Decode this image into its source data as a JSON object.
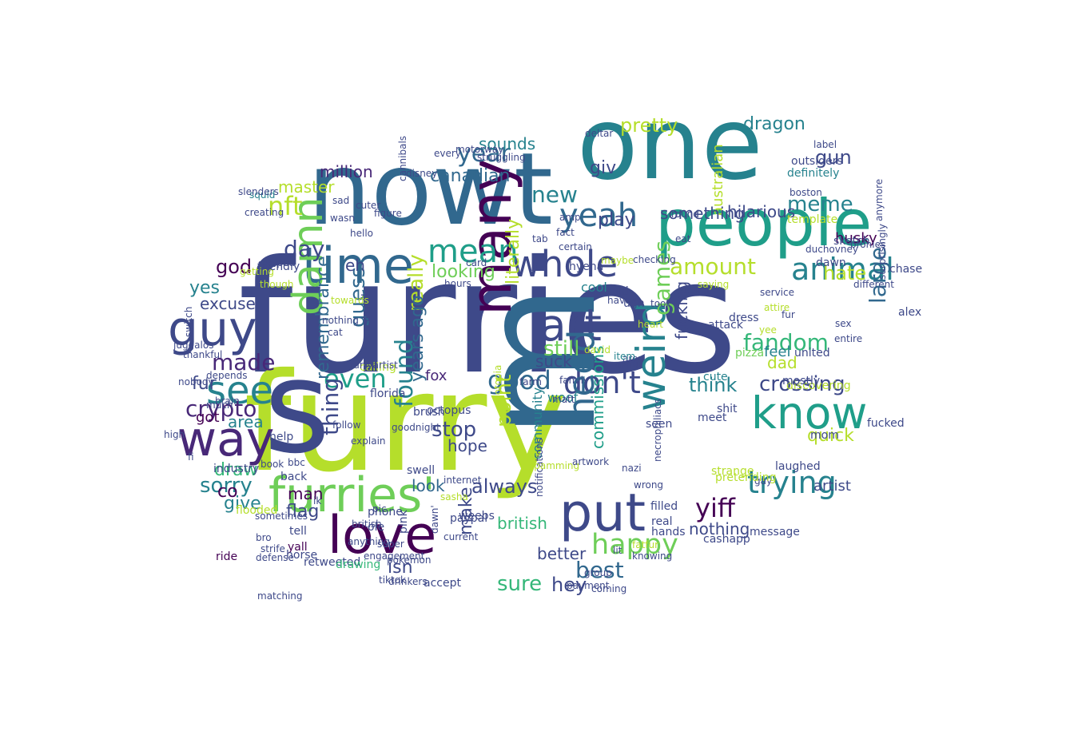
{
  "colors": [
    "#440154",
    "#482878",
    "#3e4989",
    "#31688e",
    "#26828e",
    "#1f9e89",
    "#35b779",
    "#6ece58",
    "#b5de2b",
    "#fde725"
  ],
  "words": [
    {
      "text": "furries",
      "color": "#3e4989"
    },
    {
      "text": "furry",
      "color": "#b5de2b"
    },
    {
      "text": "nowt",
      "color": "#31688e"
    },
    {
      "text": "one",
      "color": "#26828e"
    },
    {
      "text": "m",
      "color": "#31688e"
    },
    {
      "text": "s",
      "color": "#3e4989"
    },
    {
      "text": "people",
      "color": "#1f9e89"
    },
    {
      "text": "way",
      "color": "#482878"
    },
    {
      "text": "time",
      "color": "#31688e"
    },
    {
      "text": "whole",
      "color": "#3e4989"
    },
    {
      "text": "love",
      "color": "#440154"
    },
    {
      "text": "put",
      "color": "#3e4989"
    },
    {
      "text": "furries'",
      "color": "#6ece58"
    },
    {
      "text": "many",
      "color": "#440154"
    },
    {
      "text": "guy",
      "color": "#3e4989"
    },
    {
      "text": "see",
      "color": "#26828e"
    },
    {
      "text": "art",
      "color": "#3e4989"
    },
    {
      "text": "mean",
      "color": "#1f9e89"
    },
    {
      "text": "yeah",
      "color": "#31688e"
    },
    {
      "text": "know",
      "color": "#1f9e89"
    },
    {
      "text": "weird",
      "color": "#26828e"
    },
    {
      "text": "don't",
      "color": "#3e4989"
    },
    {
      "text": "damn",
      "color": "#6ece58"
    },
    {
      "text": "happy",
      "color": "#6ece58"
    },
    {
      "text": "need",
      "color": "#31688e"
    },
    {
      "text": "animal",
      "color": "#26828e"
    },
    {
      "text": "amount",
      "color": "#b5de2b"
    },
    {
      "text": "fandom",
      "color": "#35b779"
    },
    {
      "text": "trying",
      "color": "#26828e"
    },
    {
      "text": "yiff",
      "color": "#440154"
    },
    {
      "text": "crypto",
      "color": "#482878"
    },
    {
      "text": "year",
      "color": "#31688e"
    },
    {
      "text": "good",
      "color": "#31688e"
    },
    {
      "text": "meme",
      "color": "#26828e"
    },
    {
      "text": "gun",
      "color": "#3e4989"
    },
    {
      "text": "large",
      "color": "#31688e"
    },
    {
      "text": "still",
      "color": "#6ece58"
    },
    {
      "text": "think",
      "color": "#26828e"
    },
    {
      "text": "crossing",
      "color": "#3e4989"
    },
    {
      "text": "nft",
      "color": "#b5de2b"
    },
    {
      "text": "even",
      "color": "#1f9e89"
    },
    {
      "text": "day",
      "color": "#3e4989"
    },
    {
      "text": "made",
      "color": "#482878"
    },
    {
      "text": "stop",
      "color": "#3e4989"
    },
    {
      "text": "really",
      "color": "#b5de2b"
    },
    {
      "text": "always",
      "color": "#3e4989"
    },
    {
      "text": "sure",
      "color": "#35b779"
    },
    {
      "text": "best",
      "color": "#31688e"
    },
    {
      "text": "hey",
      "color": "#3e4989"
    },
    {
      "text": "games",
      "color": "#6ece58"
    },
    {
      "text": "dragon",
      "color": "#26828e"
    },
    {
      "text": "hilarious",
      "color": "#3e4989"
    },
    {
      "text": "hate",
      "color": "#b5de2b"
    },
    {
      "text": "sorry",
      "color": "#26828e"
    },
    {
      "text": "thing",
      "color": "#3e4989"
    },
    {
      "text": "excuse",
      "color": "#3e4989"
    },
    {
      "text": "god",
      "color": "#440154"
    },
    {
      "text": "fur",
      "color": "#3e4989"
    },
    {
      "text": "million",
      "color": "#482878"
    },
    {
      "text": "canadian",
      "color": "#31688e"
    },
    {
      "text": "looking",
      "color": "#6ece58"
    },
    {
      "text": "pretty",
      "color": "#b5de2b"
    },
    {
      "text": "husky",
      "color": "#440154"
    },
    {
      "text": "found",
      "color": "#26828e"
    },
    {
      "text": "years ago",
      "color": "#31688e"
    },
    {
      "text": "guess",
      "color": "#31688e"
    },
    {
      "text": "quick",
      "color": "#b5de2b"
    },
    {
      "text": "draw",
      "color": "#35b779"
    },
    {
      "text": "give",
      "color": "#26828e"
    },
    {
      "text": "flag",
      "color": "#3e4989"
    },
    {
      "text": "man",
      "color": "#440154"
    },
    {
      "text": "isn",
      "color": "#3e4989"
    },
    {
      "text": "look",
      "color": "#31688e"
    },
    {
      "text": "make",
      "color": "#3e4989"
    },
    {
      "text": "better",
      "color": "#3e4989"
    },
    {
      "text": "british",
      "color": "#35b779"
    },
    {
      "text": "nothing",
      "color": "#3e4989"
    },
    {
      "text": "dad",
      "color": "#b5de2b"
    },
    {
      "text": "remembrance",
      "color": "#31688e"
    },
    {
      "text": "community",
      "color": "#26828e"
    },
    {
      "text": "commissions",
      "color": "#1f9e89"
    },
    {
      "text": "fox",
      "color": "#482878"
    },
    {
      "text": "master",
      "color": "#b5de2b"
    },
    {
      "text": "australian",
      "color": "#b5de2b"
    },
    {
      "text": "something",
      "color": "#3e4989"
    },
    {
      "text": "sounds",
      "color": "#26828e"
    },
    {
      "text": "play",
      "color": "#3e4989"
    },
    {
      "text": "new",
      "color": "#26828e"
    },
    {
      "text": "yes",
      "color": "#26828e"
    },
    {
      "text": "got",
      "color": "#440154"
    },
    {
      "text": "area",
      "color": "#26828e"
    },
    {
      "text": "co",
      "color": "#440154"
    },
    {
      "text": "fucking",
      "color": "#3e4989"
    },
    {
      "text": "eh",
      "color": "#3e4989"
    },
    {
      "text": "giv",
      "color": "#3e4989"
    },
    {
      "text": "point",
      "color": "#b5de2b"
    },
    {
      "text": "hope",
      "color": "#3e4989"
    },
    {
      "text": "literally",
      "color": "#b5de2b"
    },
    {
      "text": "suck",
      "color": "#3e4989"
    },
    {
      "text": "feel",
      "color": "#26828e"
    },
    {
      "text": "woof",
      "color": "#26828e"
    },
    {
      "text": "definitely",
      "color": "#26828e"
    },
    {
      "text": "outsiders",
      "color": "#3e4989"
    },
    {
      "text": "template",
      "color": "#b5de2b"
    },
    {
      "text": "ride",
      "color": "#440154"
    },
    {
      "text": "dawn",
      "color": "#3e4989"
    },
    {
      "text": "squid",
      "color": "#26828e"
    },
    {
      "text": "hyena",
      "color": "#3e4989"
    },
    {
      "text": "cute",
      "color": "#26828e"
    },
    {
      "text": "pizza",
      "color": "#6ece58"
    },
    {
      "text": "alex",
      "color": "#3e4989"
    },
    {
      "text": "artist",
      "color": "#3e4989"
    },
    {
      "text": "mom",
      "color": "#3e4989"
    },
    {
      "text": "chase",
      "color": "#3e4989"
    },
    {
      "text": "haven",
      "color": "#3e4989"
    },
    {
      "text": "said",
      "color": "#3e4989"
    },
    {
      "text": "ugh",
      "color": "#3e4989"
    },
    {
      "text": "heart",
      "color": "#b5de2b"
    },
    {
      "text": "aren",
      "color": "#3e4989"
    },
    {
      "text": "awful",
      "color": "#3e4989"
    },
    {
      "text": "cool",
      "color": "#26828e"
    },
    {
      "text": "boston",
      "color": "#3e4989"
    },
    {
      "text": "sketch",
      "color": "#3e4989"
    },
    {
      "text": "bronies",
      "color": "#3e4989"
    },
    {
      "text": "different",
      "color": "#3e4989"
    },
    {
      "text": "entire",
      "color": "#3e4989"
    },
    {
      "text": "united",
      "color": "#3e4989"
    },
    {
      "text": "discovering",
      "color": "#b5de2b"
    },
    {
      "text": "fucked",
      "color": "#3e4989"
    },
    {
      "text": "laughed",
      "color": "#3e4989"
    },
    {
      "text": "strange",
      "color": "#b5de2b"
    },
    {
      "text": "yall",
      "color": "#440154"
    },
    {
      "text": "horse",
      "color": "#3e4989"
    },
    {
      "text": "retweeted",
      "color": "#3e4989"
    },
    {
      "text": "drawing",
      "color": "#35b779"
    },
    {
      "text": "industry",
      "color": "#3e4989"
    },
    {
      "text": "tell",
      "color": "#3e4989"
    },
    {
      "text": "flooded",
      "color": "#b5de2b"
    },
    {
      "text": "back",
      "color": "#3e4989"
    },
    {
      "text": "help",
      "color": "#3e4989"
    },
    {
      "text": "octopus",
      "color": "#3e4989"
    },
    {
      "text": "brush",
      "color": "#3e4989"
    },
    {
      "text": "florida",
      "color": "#3e4989"
    },
    {
      "text": "calling",
      "color": "#b5de2b"
    },
    {
      "text": "item",
      "color": "#26828e"
    },
    {
      "text": "amp",
      "color": "#3e4989"
    },
    {
      "text": "fact",
      "color": "#3e4989"
    },
    {
      "text": "dress",
      "color": "#3e4989"
    },
    {
      "text": "attack",
      "color": "#3e4989"
    },
    {
      "text": "paypal",
      "color": "#3e4989"
    },
    {
      "text": "current",
      "color": "#3e4989"
    },
    {
      "text": "accept",
      "color": "#3e4989"
    },
    {
      "text": "weebs",
      "color": "#3e4989"
    },
    {
      "text": "sasha",
      "color": "#b5de2b"
    },
    {
      "text": "internet",
      "color": "#3e4989"
    },
    {
      "text": "pink",
      "color": "#3e4989"
    },
    {
      "text": "ole",
      "color": "#3e4989"
    },
    {
      "text": "phone",
      "color": "#3e4989"
    },
    {
      "text": "swell",
      "color": "#3e4989"
    },
    {
      "text": "family",
      "color": "#3e4989"
    },
    {
      "text": "david",
      "color": "#b5de2b"
    },
    {
      "text": "shit",
      "color": "#3e4989"
    },
    {
      "text": "meet",
      "color": "#3e4989"
    },
    {
      "text": "filled",
      "color": "#3e4989"
    },
    {
      "text": "real",
      "color": "#3e4989"
    },
    {
      "text": "hands",
      "color": "#3e4989"
    },
    {
      "text": "message",
      "color": "#3e4989"
    },
    {
      "text": "cashapp",
      "color": "#3e4989"
    },
    {
      "text": "seen",
      "color": "#3e4989"
    },
    {
      "text": "gay",
      "color": "#3e4989"
    },
    {
      "text": "mostly",
      "color": "#3e4989"
    },
    {
      "text": "though",
      "color": "#b5de2b"
    },
    {
      "text": "helped",
      "color": "#3e4989"
    },
    {
      "text": "getting",
      "color": "#b5de2b"
    },
    {
      "text": "friendly",
      "color": "#3e4989"
    },
    {
      "text": "sad",
      "color": "#3e4989"
    },
    {
      "text": "wasn",
      "color": "#3e4989"
    },
    {
      "text": "hello",
      "color": "#3e4989"
    },
    {
      "text": "cuter",
      "color": "#3e4989"
    },
    {
      "text": "figure",
      "color": "#3e4989"
    },
    {
      "text": "tab",
      "color": "#3e4989"
    },
    {
      "text": "certain",
      "color": "#3e4989"
    },
    {
      "text": "card",
      "color": "#3e4989"
    },
    {
      "text": "hours",
      "color": "#3e4989"
    },
    {
      "text": "pic",
      "color": "#3e4989"
    },
    {
      "text": "checking",
      "color": "#3e4989"
    },
    {
      "text": "maybe",
      "color": "#b5de2b"
    },
    {
      "text": "took",
      "color": "#3e4989"
    },
    {
      "text": "round",
      "color": "#3e4989"
    },
    {
      "text": "eat",
      "color": "#3e4989"
    },
    {
      "text": "design",
      "color": "#3e4989"
    },
    {
      "text": "saying",
      "color": "#b5de2b"
    },
    {
      "text": "service",
      "color": "#3e4989"
    },
    {
      "text": "yee",
      "color": "#b5de2b"
    },
    {
      "text": "deltar",
      "color": "#3e4989"
    },
    {
      "text": "label",
      "color": "#3e4989"
    },
    {
      "text": "every",
      "color": "#3e4989"
    },
    {
      "text": "motorway",
      "color": "#3e4989"
    },
    {
      "text": "struggling",
      "color": "#3e4989"
    },
    {
      "text": "cannibals",
      "color": "#3e4989"
    },
    {
      "text": "creating",
      "color": "#3e4989"
    },
    {
      "text": "slenders",
      "color": "#3e4989"
    },
    {
      "text": "disney",
      "color": "#3e4989"
    },
    {
      "text": "switch",
      "color": "#3e4989"
    },
    {
      "text": "juggalos",
      "color": "#3e4989"
    },
    {
      "text": "constantly",
      "color": "#3e4989"
    },
    {
      "text": "furryartist",
      "color": "#3e4989"
    },
    {
      "text": "follow",
      "color": "#3e4989"
    },
    {
      "text": "goodnight",
      "color": "#3e4989"
    },
    {
      "text": "zootopia",
      "color": "#b5de2b"
    },
    {
      "text": "notifications",
      "color": "#3e4989"
    },
    {
      "text": "necrophiliacs",
      "color": "#3e4989"
    },
    {
      "text": "pretending",
      "color": "#b5de2b"
    },
    {
      "text": "sex",
      "color": "#3e4989"
    },
    {
      "text": "fur",
      "color": "#3e4989"
    },
    {
      "text": "attire",
      "color": "#b5de2b"
    },
    {
      "text": "surprisingly",
      "color": "#3e4989"
    },
    {
      "text": "anymore",
      "color": "#3e4989"
    },
    {
      "text": "duchovney",
      "color": "#3e4989"
    },
    {
      "text": "spamming",
      "color": "#b5de2b"
    },
    {
      "text": "matt",
      "color": "#3e4989"
    },
    {
      "text": "nazi",
      "color": "#3e4989"
    },
    {
      "text": "wrong",
      "color": "#3e4989"
    },
    {
      "text": "knowing",
      "color": "#3e4989"
    },
    {
      "text": "fatfur",
      "color": "#b5de2b"
    },
    {
      "text": "group",
      "color": "#3e4989"
    },
    {
      "text": "coming",
      "color": "#3e4989"
    },
    {
      "text": "lit",
      "color": "#3e4989"
    },
    {
      "text": "payment",
      "color": "#3e4989"
    },
    {
      "text": "artwork",
      "color": "#3e4989"
    },
    {
      "text": "farm",
      "color": "#3e4989"
    },
    {
      "text": "towards",
      "color": "#b5de2b"
    },
    {
      "text": "nothing",
      "color": "#3e4989"
    },
    {
      "text": "cat",
      "color": "#3e4989"
    },
    {
      "text": "depends",
      "color": "#3e4989"
    },
    {
      "text": "thankful",
      "color": "#3e4989"
    },
    {
      "text": "nobody",
      "color": "#3e4989"
    },
    {
      "text": "brain",
      "color": "#3e4989"
    },
    {
      "text": "much",
      "color": "#3e4989"
    },
    {
      "text": "fi",
      "color": "#3e4989"
    },
    {
      "text": "high",
      "color": "#3e4989"
    },
    {
      "text": "book",
      "color": "#3e4989"
    },
    {
      "text": "bbc",
      "color": "#3e4989"
    },
    {
      "text": "explain",
      "color": "#3e4989"
    },
    {
      "text": "anything",
      "color": "#3e4989"
    },
    {
      "text": "super",
      "color": "#3e4989"
    },
    {
      "text": "dawn'",
      "color": "#3e4989"
    },
    {
      "text": "drinkers",
      "color": "#3e4989"
    },
    {
      "text": "matching",
      "color": "#3e4989"
    },
    {
      "text": "defense",
      "color": "#3e4989"
    },
    {
      "text": "strife",
      "color": "#3e4989"
    },
    {
      "text": "sometimes",
      "color": "#3e4989"
    },
    {
      "text": "bro",
      "color": "#3e4989"
    },
    {
      "text": "tiktok",
      "color": "#3e4989"
    },
    {
      "text": "pokemon",
      "color": "#3e4989"
    },
    {
      "text": "british",
      "color": "#3e4989"
    },
    {
      "text": "engagement",
      "color": "#3e4989"
    },
    {
      "text": "ik",
      "color": "#3e4989"
    },
    {
      "text": "lol",
      "color": "#3e4989"
    },
    {
      "text": "wife",
      "color": "#3e4989"
    }
  ]
}
